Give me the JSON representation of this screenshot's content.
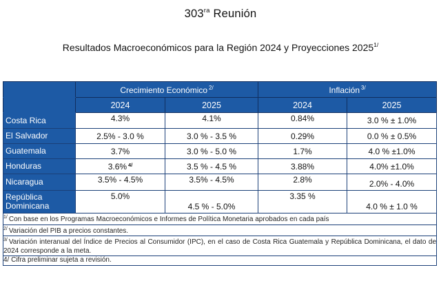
{
  "header": {
    "meeting_number": "303",
    "meeting_suffix": "ra",
    "meeting_label": "Reunión",
    "report_title": "Resultados Macroeconómicos para la Región 2024 y Proyecciones 2025",
    "report_title_note": "1/"
  },
  "table": {
    "groups": [
      {
        "label": "Crecimiento Económico",
        "note": "2/"
      },
      {
        "label": "Inflación",
        "note": "3/"
      }
    ],
    "years": [
      "2024",
      "2025",
      "2024",
      "2025"
    ],
    "rows": [
      {
        "country": "Costa Rica",
        "gdp_2024": "4.3%",
        "gdp_2024_note": "",
        "gdp_2025": "4.1%",
        "inf_2024": "0.84%",
        "inf_2025": "3.0 % ± 1.0%"
      },
      {
        "country": "El Salvador",
        "gdp_2024": "2.5% - 3.0 %",
        "gdp_2024_note": "",
        "gdp_2025": "3.0 % - 3.5 %",
        "inf_2024": "0.29%",
        "inf_2025": "0.0 % ± 0.5%"
      },
      {
        "country": "Guatemala",
        "gdp_2024": "3.7%",
        "gdp_2024_note": "",
        "gdp_2025": "3.0 % - 5.0 %",
        "inf_2024": "1.7%",
        "inf_2025": "4.0 % ±1.0%"
      },
      {
        "country": "Honduras",
        "gdp_2024": "3.6%",
        "gdp_2024_note": "4/",
        "gdp_2025": "3.5 % - 4.5 %",
        "inf_2024": "3.88%",
        "inf_2025": "4.0% ±1.0%"
      },
      {
        "country": "Nicaragua",
        "gdp_2024": "3.5% - 4.5%",
        "gdp_2024_note": "",
        "gdp_2025": "3.5% - 4.5%",
        "inf_2024": "2.8%",
        "inf_2025": "2.0% - 4.0%"
      },
      {
        "country": "República Dominicana",
        "gdp_2024": "5.0%",
        "gdp_2024_note": "",
        "gdp_2025": "4.5 % - 5.0%",
        "inf_2024": "3.35 %",
        "inf_2025": "4.0 % ± 1.0 %"
      }
    ]
  },
  "notes": [
    {
      "mark": "1/",
      "text": "Con base en los Programas Macroeconómicos e Informes de Política Monetaria aprobados en cada país"
    },
    {
      "mark": "2/",
      "text": "Variación del PIB a precios constantes."
    },
    {
      "mark": "3/",
      "text": "Variación interanual del Índice de Precios al Consumidor (IPC), en el caso de Costa Rica Guatemala y República Dominicana, el dato de 2024 corresponde a la meta."
    },
    {
      "mark": "",
      "text": "4/ Cifra preliminar sujeta a revisión."
    }
  ]
}
